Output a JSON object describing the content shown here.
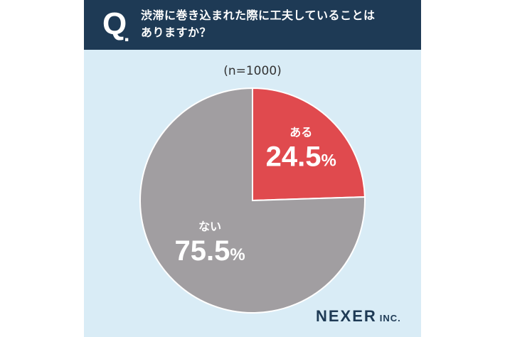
{
  "header": {
    "q_mark": "Q",
    "q_dot": ".",
    "question_line1": "渋滞に巻き込まれた際に工夫していることは",
    "question_line2": "ありますか？"
  },
  "sample_note": "(n=1000)",
  "chart_data": {
    "type": "pie",
    "slices": [
      {
        "label": "ある",
        "value": 24.5,
        "display": "24.5",
        "unit": "%",
        "color": "#e04a4e"
      },
      {
        "label": "ない",
        "value": 75.5,
        "display": "75.5",
        "unit": "%",
        "color": "#a19ea1"
      }
    ]
  },
  "logo": {
    "main": "NEXER",
    "suffix": "INC."
  },
  "colors": {
    "header_bg": "#1e3a55",
    "card_bg": "#d9ecf6"
  }
}
